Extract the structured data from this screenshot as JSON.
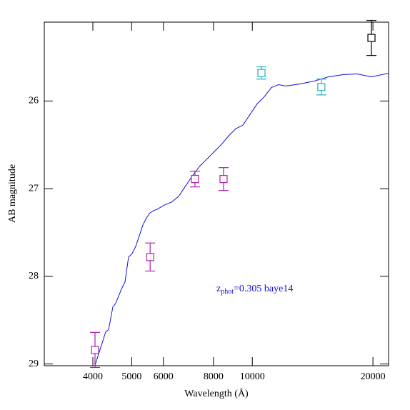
{
  "chart_data": {
    "type": "scatter",
    "xlabel": "Wavelength (Å)",
    "ylabel": "AB magnitude",
    "xscale": "log",
    "xlim": [
      3026,
      21880
    ],
    "ylim": [
      29.02,
      25.1
    ],
    "xticks": [
      4000,
      5000,
      6000,
      8000,
      10000,
      20000
    ],
    "yticks": [
      26,
      27,
      28,
      29
    ],
    "annotation": {
      "main": "z",
      "sub": "phot",
      "rest": "=0.305 baye14",
      "color": "#1010e0"
    },
    "curve": {
      "color": "#1010e0",
      "x": [
        4050,
        4168,
        4307,
        4378,
        4487,
        4560,
        4637,
        4713,
        4811,
        4911,
        5012,
        5117,
        5223,
        5332,
        5443,
        5555,
        5670,
        5787,
        6030,
        6282,
        6546,
        6820,
        7105,
        7403,
        7713,
        8036,
        8373,
        8724,
        9089,
        9470,
        9866,
        10280,
        10710,
        11160,
        11630,
        12120,
        13150,
        14280,
        15500,
        16830,
        18260,
        19830,
        21880
      ],
      "y": [
        29.016,
        28.837,
        28.634,
        28.61,
        28.35,
        28.309,
        28.228,
        28.146,
        28.065,
        27.78,
        27.74,
        27.659,
        27.537,
        27.415,
        27.333,
        27.276,
        27.252,
        27.236,
        27.187,
        27.154,
        27.089,
        26.967,
        26.846,
        26.74,
        26.659,
        26.577,
        26.496,
        26.398,
        26.317,
        26.276,
        26.154,
        26.033,
        25.951,
        25.846,
        25.813,
        25.829,
        25.805,
        25.772,
        25.724,
        25.699,
        25.691,
        25.724,
        25.683
      ]
    },
    "points": {
      "x": [
        4050,
        5560,
        7193,
        8477,
        10540,
        14870,
        19830
      ],
      "y": [
        28.84,
        27.78,
        26.89,
        26.89,
        25.68,
        25.84,
        25.28
      ],
      "err": [
        0.2,
        0.16,
        0.09,
        0.13,
        0.07,
        0.09,
        0.2
      ],
      "colors": [
        "#b020b0",
        "#b020b0",
        "#b020b0",
        "#b020b0",
        "#20b0c0",
        "#20b0c0",
        "#000000"
      ]
    }
  }
}
